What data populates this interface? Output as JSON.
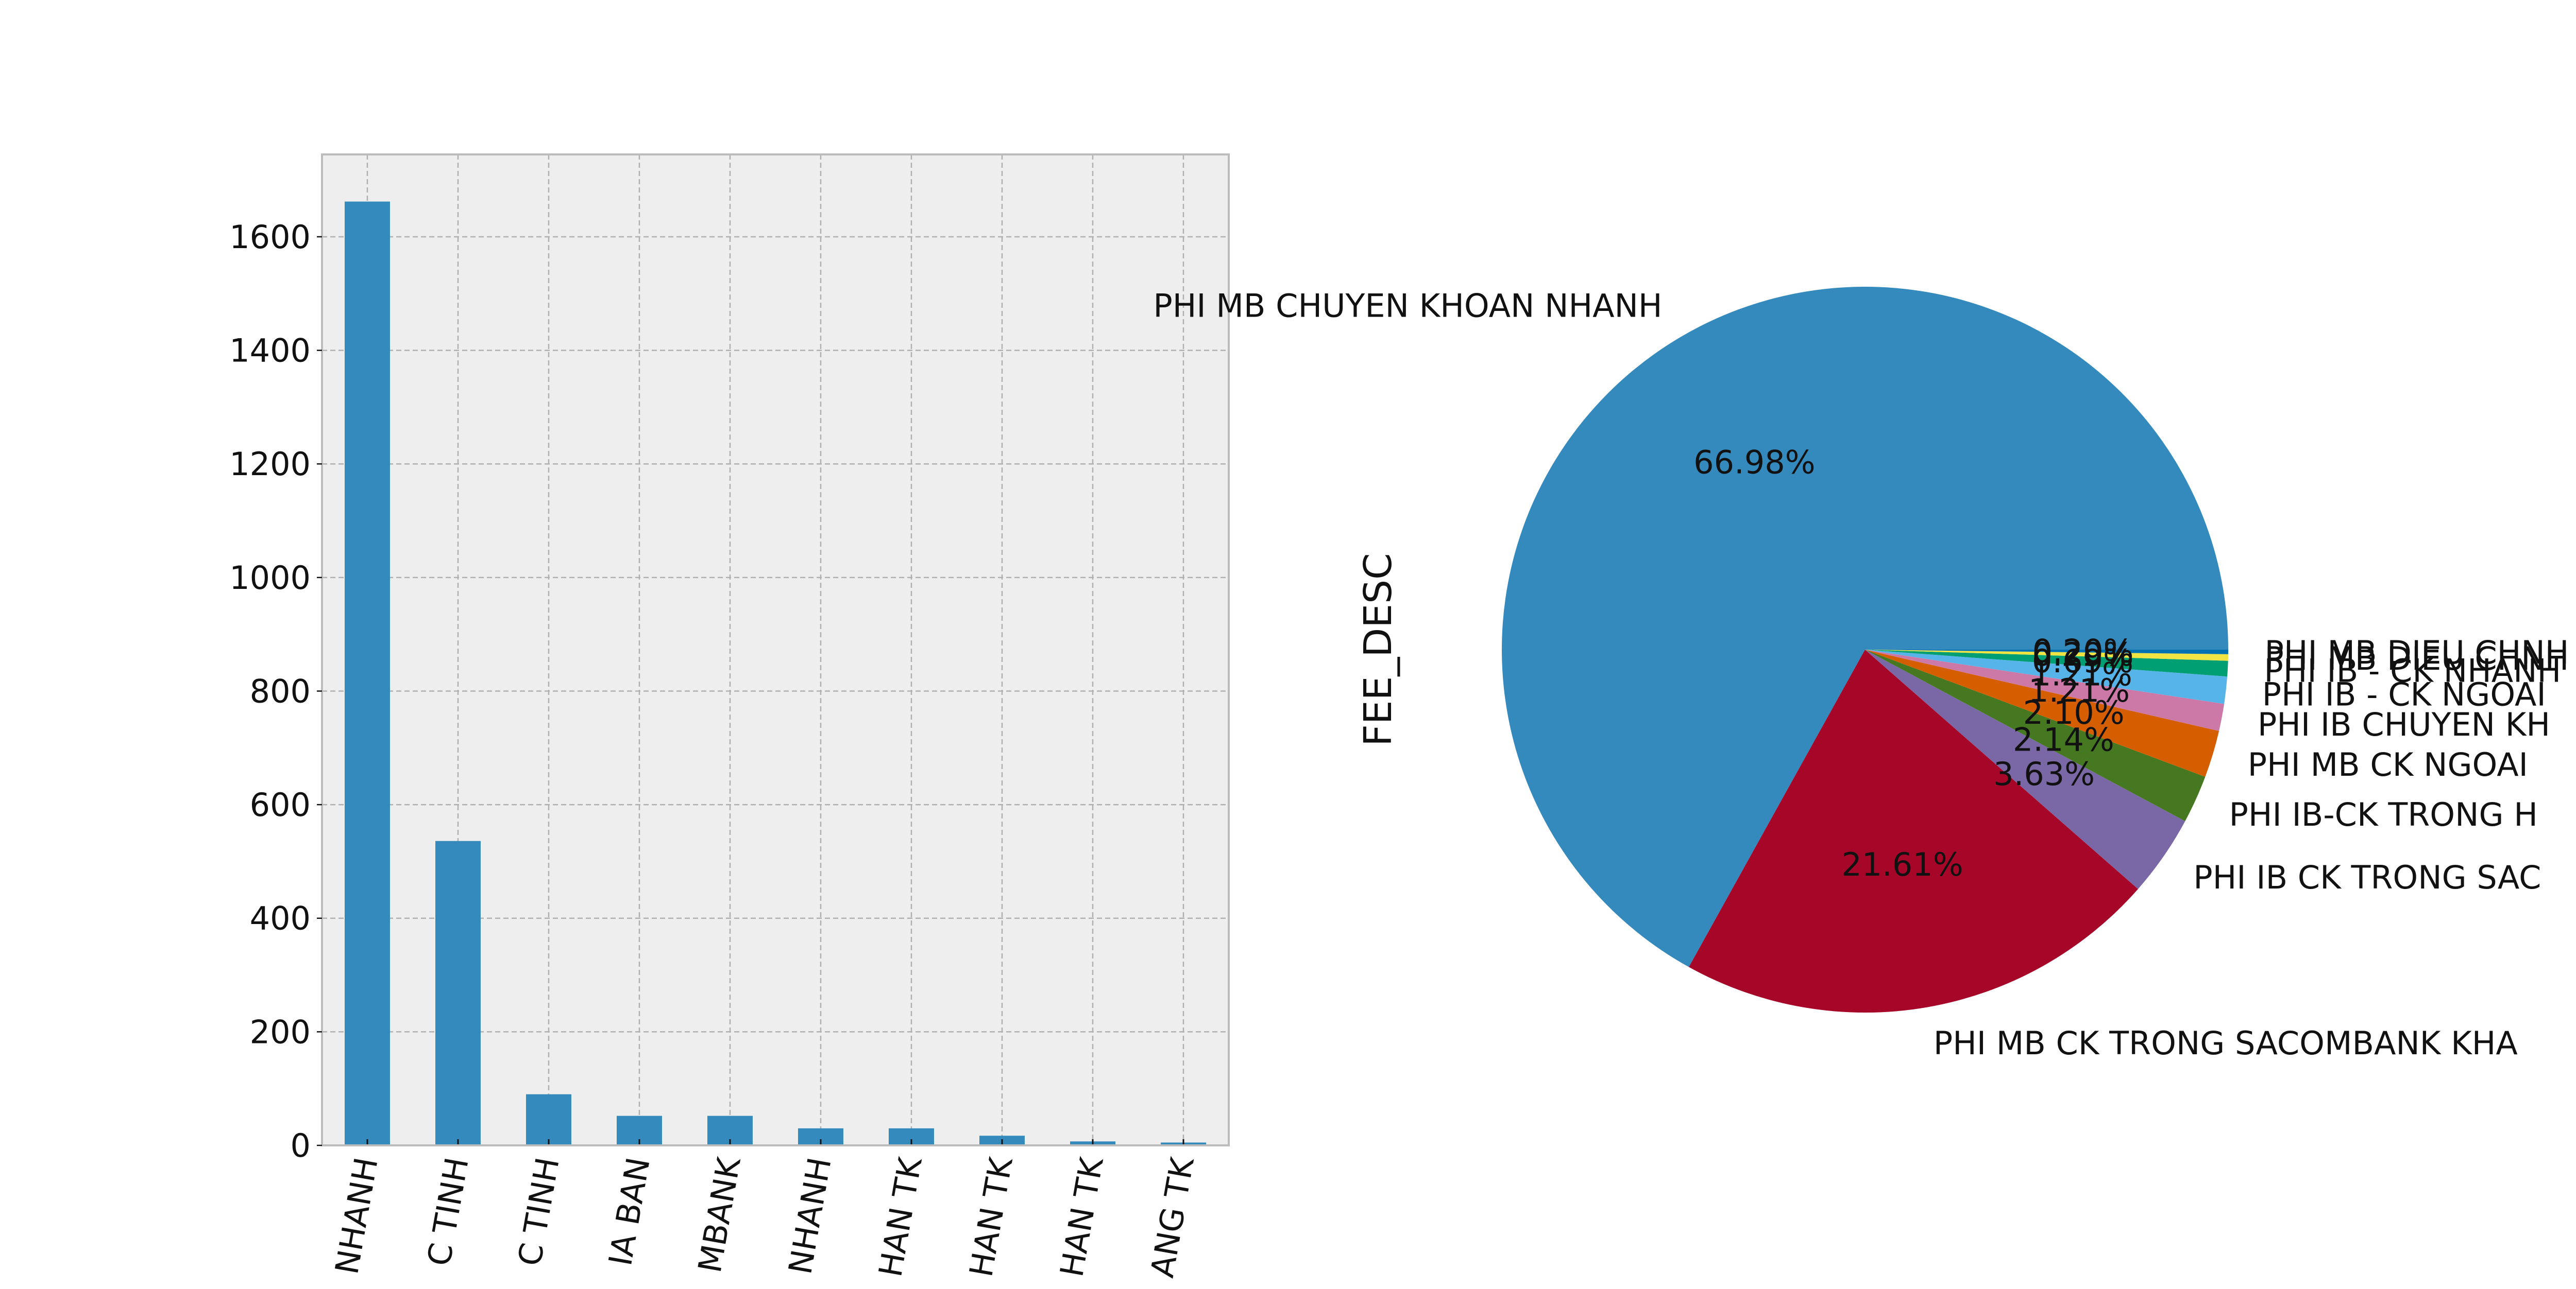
{
  "colors": {
    "background": "#ffffff",
    "panel": "#eeeeee",
    "grid": "#b0b0b0",
    "frame": "#bcbcbc",
    "bar": "#348abd",
    "text": "#111111"
  },
  "chart_data": [
    {
      "type": "bar",
      "title": "",
      "xlabel": "",
      "ylabel": "",
      "grid": true,
      "ylim": [
        0,
        1745
      ],
      "yticks": [
        "0",
        "200",
        "400",
        "600",
        "800",
        "1000",
        "1200",
        "1400",
        "1600"
      ],
      "ytick_values": [
        0,
        200,
        400,
        600,
        800,
        1000,
        1200,
        1400,
        1600
      ],
      "categories": [
        "NHANH",
        "C TINH",
        "C TINH",
        "IA BAN",
        "MBANK",
        "NHANH",
        "HAN TK",
        "HAN TK",
        "HAN TK",
        "ANG TK"
      ],
      "values": [
        1662,
        536,
        90,
        52,
        52,
        30,
        30,
        17,
        7,
        5
      ]
    },
    {
      "type": "pie",
      "ylabel": "FEE_DESC",
      "startangle": 0,
      "clockwise": false,
      "slices": [
        {
          "label": "PHI MB CHUYEN KHOAN NHANH",
          "value": 66.98,
          "pct": "66.98%",
          "color": "#348abd"
        },
        {
          "label": "PHI MB CK TRONG SACOMBANK KHA",
          "value": 21.61,
          "pct": "21.61%",
          "color": "#a60628"
        },
        {
          "label": "PHI IB CK TRONG SAC",
          "value": 3.63,
          "pct": "3.63%",
          "color": "#7a68a6"
        },
        {
          "label": "PHI IB-CK TRONG H",
          "value": 2.14,
          "pct": "2.14%",
          "color": "#467821"
        },
        {
          "label": "PHI MB CK NGOAI",
          "value": 2.1,
          "pct": "2.10%",
          "color": "#d55e00"
        },
        {
          "label": "PHI IB CHUYEN KH",
          "value": 1.21,
          "pct": "1.21%",
          "color": "#cc79a7"
        },
        {
          "label": "PHI IB - CK NGOAI",
          "value": 1.21,
          "pct": "1.21%",
          "color": "#56b4e9"
        },
        {
          "label": "PHI IB - CK NHANH",
          "value": 0.69,
          "pct": "0.69%",
          "color": "#009e73"
        },
        {
          "label": "PHI MB DIEU CHNH",
          "value": 0.29,
          "pct": "0.29%",
          "color": "#f0e442"
        },
        {
          "label": "PHI MB DIEU CHNH",
          "value": 0.2,
          "pct": "0.20%",
          "color": "#0072b2"
        }
      ]
    }
  ]
}
